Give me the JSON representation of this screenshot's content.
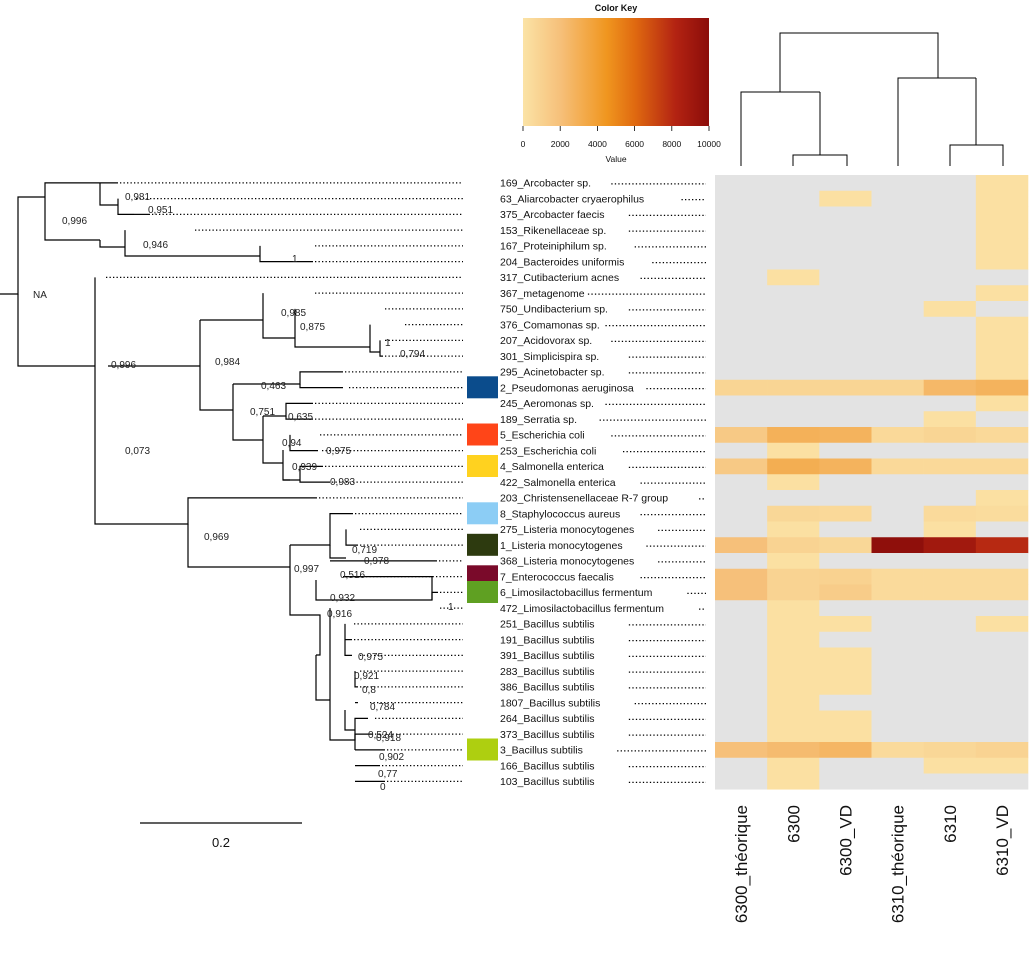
{
  "chart_data": {
    "type": "heatmap",
    "color_key": {
      "title": "Color Key",
      "xlabel": "Value",
      "ticks": [
        "0",
        "2000",
        "4000",
        "6000",
        "8000",
        "10000"
      ],
      "range": [
        0,
        10000
      ],
      "colors": [
        "#fbe3a6",
        "#f6c07a",
        "#f0961f",
        "#e06a10",
        "#b32312",
        "#8b0d0a"
      ]
    },
    "columns": [
      "6300_théorique",
      "6300",
      "6300_VD",
      "6310_théorique",
      "6310",
      "6310_VD"
    ],
    "rows": [
      {
        "label": "169_Arcobacter sp.",
        "values": [
          0,
          0,
          0,
          0,
          0,
          200
        ]
      },
      {
        "label": "63_Aliarcobacter cryaerophilus",
        "values": [
          0,
          0,
          200,
          0,
          0,
          200
        ]
      },
      {
        "label": "375_Arcobacter faecis",
        "values": [
          0,
          0,
          0,
          0,
          0,
          200
        ]
      },
      {
        "label": "153_Rikenellaceae sp.",
        "values": [
          0,
          0,
          0,
          0,
          0,
          200
        ]
      },
      {
        "label": "167_Proteiniphilum sp.",
        "values": [
          0,
          0,
          0,
          0,
          0,
          200
        ]
      },
      {
        "label": "204_Bacteroides uniformis",
        "values": [
          0,
          0,
          0,
          0,
          0,
          200
        ]
      },
      {
        "label": "317_Cutibacterium acnes",
        "values": [
          0,
          200,
          0,
          0,
          0,
          0
        ]
      },
      {
        "label": "367_metagenome",
        "values": [
          0,
          0,
          0,
          0,
          0,
          200
        ]
      },
      {
        "label": "750_Undibacterium sp.",
        "values": [
          0,
          0,
          0,
          0,
          200,
          0
        ]
      },
      {
        "label": "376_Comamonas sp.",
        "values": [
          0,
          0,
          0,
          0,
          0,
          200
        ]
      },
      {
        "label": "207_Acidovorax sp.",
        "values": [
          0,
          0,
          0,
          0,
          0,
          200
        ]
      },
      {
        "label": "301_Simplicispira sp.",
        "values": [
          0,
          0,
          0,
          0,
          0,
          200
        ]
      },
      {
        "label": "295_Acinetobacter sp.",
        "values": [
          0,
          0,
          0,
          0,
          0,
          200
        ]
      },
      {
        "label": "2_Pseudomonas aeruginosa",
        "values": [
          800,
          800,
          800,
          800,
          2500,
          2800
        ]
      },
      {
        "label": "245_Aeromonas sp.",
        "values": [
          0,
          0,
          0,
          0,
          0,
          200
        ]
      },
      {
        "label": "189_Serratia sp.",
        "values": [
          0,
          0,
          0,
          0,
          200,
          0
        ]
      },
      {
        "label": "5_Escherichia coli",
        "values": [
          1500,
          2900,
          2800,
          600,
          800,
          600
        ]
      },
      {
        "label": "253_Escherichia coli",
        "values": [
          0,
          200,
          0,
          0,
          0,
          0
        ]
      },
      {
        "label": "4_Salmonella enterica",
        "values": [
          1500,
          3100,
          2800,
          600,
          600,
          600
        ]
      },
      {
        "label": "422_Salmonella enterica",
        "values": [
          0,
          200,
          0,
          0,
          0,
          0
        ]
      },
      {
        "label": "203_Christensenellaceae R-7 group",
        "values": [
          0,
          0,
          0,
          0,
          0,
          200
        ]
      },
      {
        "label": "8_Staphylococcus aureus",
        "values": [
          0,
          700,
          600,
          0,
          500,
          400
        ]
      },
      {
        "label": "275_Listeria monocytogenes",
        "values": [
          0,
          200,
          0,
          0,
          200,
          0
        ]
      },
      {
        "label": "1_Listeria monocytogenes",
        "values": [
          2000,
          900,
          700,
          9800,
          9000,
          8000
        ]
      },
      {
        "label": "368_Listeria monocytogenes",
        "values": [
          0,
          200,
          0,
          0,
          0,
          0
        ]
      },
      {
        "label": "7_Enterococcus faecalis",
        "values": [
          2000,
          900,
          1000,
          500,
          500,
          500
        ]
      },
      {
        "label": "6_Limosilactobacillus fermentum",
        "values": [
          2000,
          900,
          1300,
          500,
          500,
          500
        ]
      },
      {
        "label": "472_Limosilactobacillus fermentum",
        "values": [
          0,
          200,
          0,
          0,
          0,
          0
        ]
      },
      {
        "label": "251_Bacillus subtilis",
        "values": [
          0,
          200,
          200,
          0,
          0,
          200
        ]
      },
      {
        "label": "191_Bacillus subtilis",
        "values": [
          0,
          200,
          0,
          0,
          0,
          0
        ]
      },
      {
        "label": "391_Bacillus subtilis",
        "values": [
          0,
          200,
          200,
          0,
          0,
          0
        ]
      },
      {
        "label": "283_Bacillus subtilis",
        "values": [
          0,
          200,
          200,
          0,
          0,
          0
        ]
      },
      {
        "label": "386_Bacillus subtilis",
        "values": [
          0,
          200,
          200,
          0,
          0,
          0
        ]
      },
      {
        "label": "1807_Bacillus subtilis",
        "values": [
          0,
          200,
          0,
          0,
          0,
          0
        ]
      },
      {
        "label": "264_Bacillus subtilis",
        "values": [
          0,
          200,
          200,
          0,
          0,
          0
        ]
      },
      {
        "label": "373_Bacillus subtilis",
        "values": [
          0,
          200,
          200,
          0,
          0,
          0
        ]
      },
      {
        "label": "3_Bacillus subtilis",
        "values": [
          2000,
          2300,
          2600,
          500,
          700,
          900
        ]
      },
      {
        "label": "166_Bacillus subtilis",
        "values": [
          0,
          200,
          0,
          0,
          200,
          200
        ]
      },
      {
        "label": "103_Bacillus subtilis",
        "values": [
          0,
          200,
          0,
          0,
          0,
          0
        ]
      }
    ],
    "highlighted_taxa": [
      {
        "row": "2_Pseudomonas aeruginosa",
        "color": "#0b4c8c"
      },
      {
        "row": "5_Escherichia coli",
        "color": "#ff4518"
      },
      {
        "row": "4_Salmonella enterica",
        "color": "#ffd21f"
      },
      {
        "row": "8_Staphylococcus aureus",
        "color": "#8ccdf5"
      },
      {
        "row": "1_Listeria monocytogenes",
        "color": "#2d3a0f"
      },
      {
        "row": "7_Enterococcus faecalis",
        "color": "#7a0a2a"
      },
      {
        "row": "6_Limosilactobacillus fermentum",
        "color": "#5fa022"
      },
      {
        "row": "3_Bacillus subtilis",
        "color": "#aecf10"
      }
    ],
    "tree_node_labels": [
      "0,981",
      "0,951",
      "0,996",
      "0,946",
      "1",
      "NA",
      "0,985",
      "0,875",
      "1",
      "0,794",
      "0,996",
      "0,984",
      "0,463",
      "0,751",
      "0,635",
      "0,94",
      "0,975",
      "0,939",
      "0,983",
      "0,073",
      "0,969",
      "0,719",
      "0,978",
      "0,997",
      "0,516",
      "0,932",
      "1",
      "0,916",
      "0,975",
      "0,921",
      "0,8",
      "0,784",
      "0,524",
      "0,918",
      "0,902",
      "0,77",
      "0"
    ],
    "scale_bar_label": "0.2"
  }
}
